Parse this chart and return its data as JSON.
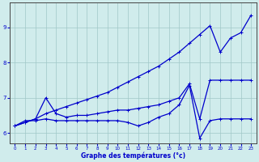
{
  "hours": [
    0,
    1,
    2,
    3,
    4,
    5,
    6,
    7,
    8,
    9,
    10,
    11,
    12,
    13,
    14,
    15,
    16,
    17,
    18,
    19,
    20,
    21,
    22,
    23
  ],
  "line1": [
    6.2,
    6.3,
    6.4,
    6.55,
    6.65,
    6.75,
    6.85,
    6.95,
    7.05,
    7.15,
    7.3,
    7.45,
    7.6,
    7.75,
    7.9,
    8.1,
    8.3,
    8.55,
    8.8,
    9.05,
    8.3,
    8.7,
    8.85,
    9.35
  ],
  "line2": [
    6.2,
    6.3,
    6.4,
    7.0,
    6.55,
    6.45,
    6.5,
    6.5,
    6.55,
    6.6,
    6.65,
    6.65,
    6.7,
    6.75,
    6.8,
    6.9,
    7.0,
    7.4,
    6.4,
    7.5,
    7.5,
    7.5,
    7.5,
    7.5
  ],
  "line3": [
    6.2,
    6.35,
    6.35,
    6.4,
    6.35,
    6.35,
    6.35,
    6.35,
    6.35,
    6.35,
    6.35,
    6.3,
    6.2,
    6.3,
    6.45,
    6.55,
    6.8,
    7.35,
    5.85,
    6.35,
    6.4,
    6.4,
    6.4,
    6.4
  ],
  "line_color": "#0000cc",
  "bg_color": "#d0ecec",
  "grid_color": "#a0c8c8",
  "xlabel": "Graphe des températures (°c)",
  "ylim": [
    5.7,
    9.7
  ],
  "xlim": [
    -0.5,
    23.5
  ],
  "yticks": [
    6,
    7,
    8,
    9
  ],
  "xticks": [
    0,
    1,
    2,
    3,
    4,
    5,
    6,
    7,
    8,
    9,
    10,
    11,
    12,
    13,
    14,
    15,
    16,
    17,
    18,
    19,
    20,
    21,
    22,
    23
  ]
}
